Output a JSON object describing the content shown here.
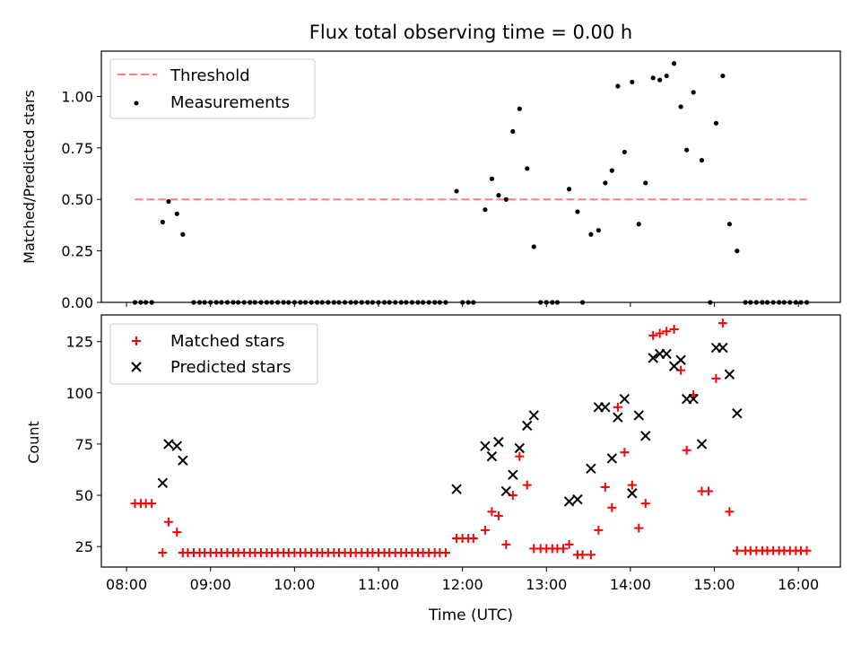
{
  "figure": {
    "title": "Flux total observing time = 0.00 h"
  },
  "chart_data": [
    {
      "type": "scatter",
      "title": "Flux total observing time = 0.00 h",
      "xlabel": "",
      "ylabel": "Matched/Predicted stars",
      "xlim": [
        7.7,
        16.5
      ],
      "ylim": [
        0.0,
        1.22
      ],
      "yticks": [
        "0.00",
        "0.25",
        "0.50",
        "0.75",
        "1.00"
      ],
      "legend_position": "top-left",
      "threshold": {
        "name": "Threshold",
        "value": 0.5,
        "x_range": [
          8.1,
          16.1
        ],
        "color": "#ff7f7f",
        "style": "dashed"
      },
      "series": [
        {
          "name": "Measurements",
          "color": "#000000",
          "marker": "dot",
          "points": [
            [
              8.1,
              0
            ],
            [
              8.17,
              0
            ],
            [
              8.23,
              0
            ],
            [
              8.3,
              0
            ],
            [
              8.43,
              0.39
            ],
            [
              8.5,
              0.49
            ],
            [
              8.6,
              0.43
            ],
            [
              8.67,
              0.33
            ],
            [
              8.8,
              0
            ],
            [
              8.87,
              0
            ],
            [
              8.93,
              0
            ],
            [
              9.0,
              0
            ],
            [
              9.07,
              0
            ],
            [
              9.13,
              0
            ],
            [
              9.2,
              0
            ],
            [
              9.27,
              0
            ],
            [
              9.33,
              0
            ],
            [
              9.4,
              0
            ],
            [
              9.47,
              0
            ],
            [
              9.53,
              0
            ],
            [
              9.6,
              0
            ],
            [
              9.67,
              0
            ],
            [
              9.73,
              0
            ],
            [
              9.8,
              0
            ],
            [
              9.87,
              0
            ],
            [
              9.93,
              0
            ],
            [
              10.0,
              0
            ],
            [
              10.07,
              0
            ],
            [
              10.13,
              0
            ],
            [
              10.2,
              0
            ],
            [
              10.27,
              0
            ],
            [
              10.33,
              0
            ],
            [
              10.4,
              0
            ],
            [
              10.47,
              0
            ],
            [
              10.53,
              0
            ],
            [
              10.6,
              0
            ],
            [
              10.67,
              0
            ],
            [
              10.73,
              0
            ],
            [
              10.8,
              0
            ],
            [
              10.87,
              0
            ],
            [
              10.93,
              0
            ],
            [
              11.0,
              0
            ],
            [
              11.07,
              0
            ],
            [
              11.13,
              0
            ],
            [
              11.2,
              0
            ],
            [
              11.27,
              0
            ],
            [
              11.33,
              0
            ],
            [
              11.4,
              0
            ],
            [
              11.47,
              0
            ],
            [
              11.53,
              0
            ],
            [
              11.6,
              0
            ],
            [
              11.67,
              0
            ],
            [
              11.73,
              0
            ],
            [
              11.8,
              0
            ],
            [
              11.93,
              0.54
            ],
            [
              12.0,
              0
            ],
            [
              12.07,
              0
            ],
            [
              12.13,
              0
            ],
            [
              12.27,
              0.45
            ],
            [
              12.35,
              0.6
            ],
            [
              12.43,
              0.52
            ],
            [
              12.52,
              0.5
            ],
            [
              12.6,
              0.83
            ],
            [
              12.68,
              0.94
            ],
            [
              12.77,
              0.65
            ],
            [
              12.85,
              0.27
            ],
            [
              12.93,
              0
            ],
            [
              13.0,
              0
            ],
            [
              13.07,
              0
            ],
            [
              13.13,
              0
            ],
            [
              13.27,
              0.55
            ],
            [
              13.37,
              0.44
            ],
            [
              13.43,
              0
            ],
            [
              13.53,
              0.33
            ],
            [
              13.62,
              0.35
            ],
            [
              13.7,
              0.58
            ],
            [
              13.78,
              0.64
            ],
            [
              13.85,
              1.05
            ],
            [
              13.93,
              0.73
            ],
            [
              14.02,
              1.07
            ],
            [
              14.1,
              0.38
            ],
            [
              14.18,
              0.58
            ],
            [
              14.27,
              1.09
            ],
            [
              14.35,
              1.08
            ],
            [
              14.43,
              1.1
            ],
            [
              14.52,
              1.16
            ],
            [
              14.6,
              0.95
            ],
            [
              14.67,
              0.74
            ],
            [
              14.75,
              1.02
            ],
            [
              14.85,
              0.69
            ],
            [
              14.95,
              0
            ],
            [
              15.02,
              0.87
            ],
            [
              15.1,
              1.1
            ],
            [
              15.18,
              0.38
            ],
            [
              15.27,
              0.25
            ],
            [
              15.37,
              0
            ],
            [
              15.43,
              0
            ],
            [
              15.5,
              0
            ],
            [
              15.57,
              0
            ],
            [
              15.63,
              0
            ],
            [
              15.7,
              0
            ],
            [
              15.77,
              0
            ],
            [
              15.83,
              0
            ],
            [
              15.9,
              0
            ],
            [
              15.97,
              0
            ],
            [
              16.03,
              0
            ],
            [
              16.1,
              0
            ]
          ]
        }
      ]
    },
    {
      "type": "scatter",
      "xlabel": "Time (UTC)",
      "ylabel": "Count",
      "xlim": [
        7.7,
        16.5
      ],
      "ylim": [
        15,
        138
      ],
      "xticks": [
        "08:00",
        "09:00",
        "10:00",
        "11:00",
        "12:00",
        "13:00",
        "14:00",
        "15:00",
        "16:00"
      ],
      "yticks": [
        "25",
        "50",
        "75",
        "100",
        "125"
      ],
      "legend_position": "top-left",
      "series": [
        {
          "name": "Matched stars",
          "color": "#ff0000",
          "marker": "plus",
          "points": [
            [
              8.1,
              46
            ],
            [
              8.17,
              46
            ],
            [
              8.23,
              46
            ],
            [
              8.3,
              46
            ],
            [
              8.43,
              22
            ],
            [
              8.5,
              37
            ],
            [
              8.6,
              32
            ],
            [
              8.67,
              22
            ],
            [
              8.73,
              22
            ],
            [
              8.8,
              22
            ],
            [
              8.87,
              22
            ],
            [
              8.93,
              22
            ],
            [
              9.0,
              22
            ],
            [
              9.07,
              22
            ],
            [
              9.13,
              22
            ],
            [
              9.2,
              22
            ],
            [
              9.27,
              22
            ],
            [
              9.33,
              22
            ],
            [
              9.4,
              22
            ],
            [
              9.47,
              22
            ],
            [
              9.53,
              22
            ],
            [
              9.6,
              22
            ],
            [
              9.67,
              22
            ],
            [
              9.73,
              22
            ],
            [
              9.8,
              22
            ],
            [
              9.87,
              22
            ],
            [
              9.93,
              22
            ],
            [
              10.0,
              22
            ],
            [
              10.07,
              22
            ],
            [
              10.13,
              22
            ],
            [
              10.2,
              22
            ],
            [
              10.27,
              22
            ],
            [
              10.33,
              22
            ],
            [
              10.4,
              22
            ],
            [
              10.47,
              22
            ],
            [
              10.53,
              22
            ],
            [
              10.6,
              22
            ],
            [
              10.67,
              22
            ],
            [
              10.73,
              22
            ],
            [
              10.8,
              22
            ],
            [
              10.87,
              22
            ],
            [
              10.93,
              22
            ],
            [
              11.0,
              22
            ],
            [
              11.07,
              22
            ],
            [
              11.13,
              22
            ],
            [
              11.2,
              22
            ],
            [
              11.27,
              22
            ],
            [
              11.33,
              22
            ],
            [
              11.4,
              22
            ],
            [
              11.47,
              22
            ],
            [
              11.53,
              22
            ],
            [
              11.6,
              22
            ],
            [
              11.67,
              22
            ],
            [
              11.73,
              22
            ],
            [
              11.8,
              22
            ],
            [
              11.93,
              29
            ],
            [
              12.0,
              29
            ],
            [
              12.07,
              29
            ],
            [
              12.13,
              29
            ],
            [
              12.27,
              33
            ],
            [
              12.35,
              42
            ],
            [
              12.43,
              40
            ],
            [
              12.52,
              26
            ],
            [
              12.6,
              50
            ],
            [
              12.68,
              69
            ],
            [
              12.77,
              55
            ],
            [
              12.85,
              24
            ],
            [
              12.93,
              24
            ],
            [
              13.0,
              24
            ],
            [
              13.07,
              24
            ],
            [
              13.13,
              24
            ],
            [
              13.2,
              24
            ],
            [
              13.27,
              26
            ],
            [
              13.37,
              21
            ],
            [
              13.43,
              21
            ],
            [
              13.53,
              21
            ],
            [
              13.62,
              33
            ],
            [
              13.7,
              54
            ],
            [
              13.78,
              44
            ],
            [
              13.85,
              93
            ],
            [
              13.93,
              71
            ],
            [
              14.02,
              55
            ],
            [
              14.1,
              34
            ],
            [
              14.18,
              46
            ],
            [
              14.27,
              128
            ],
            [
              14.35,
              129
            ],
            [
              14.43,
              130
            ],
            [
              14.52,
              131
            ],
            [
              14.6,
              111
            ],
            [
              14.67,
              72
            ],
            [
              14.75,
              99
            ],
            [
              14.85,
              52
            ],
            [
              14.93,
              52
            ],
            [
              15.02,
              107
            ],
            [
              15.1,
              134
            ],
            [
              15.18,
              42
            ],
            [
              15.27,
              23
            ],
            [
              15.37,
              23
            ],
            [
              15.43,
              23
            ],
            [
              15.5,
              23
            ],
            [
              15.57,
              23
            ],
            [
              15.63,
              23
            ],
            [
              15.7,
              23
            ],
            [
              15.77,
              23
            ],
            [
              15.83,
              23
            ],
            [
              15.9,
              23
            ],
            [
              15.97,
              23
            ],
            [
              16.03,
              23
            ],
            [
              16.1,
              23
            ]
          ]
        },
        {
          "name": "Predicted stars",
          "color": "#000000",
          "marker": "x",
          "points": [
            [
              8.43,
              56
            ],
            [
              8.5,
              75
            ],
            [
              8.6,
              74
            ],
            [
              8.67,
              67
            ],
            [
              11.93,
              53
            ],
            [
              12.27,
              74
            ],
            [
              12.35,
              69
            ],
            [
              12.43,
              76
            ],
            [
              12.52,
              52
            ],
            [
              12.6,
              60
            ],
            [
              12.68,
              73
            ],
            [
              12.77,
              84
            ],
            [
              12.85,
              89
            ],
            [
              13.27,
              47
            ],
            [
              13.37,
              48
            ],
            [
              13.53,
              63
            ],
            [
              13.62,
              93
            ],
            [
              13.7,
              93
            ],
            [
              13.78,
              68
            ],
            [
              13.85,
              88
            ],
            [
              13.93,
              97
            ],
            [
              14.02,
              51
            ],
            [
              14.1,
              89
            ],
            [
              14.18,
              79
            ],
            [
              14.27,
              117
            ],
            [
              14.35,
              119
            ],
            [
              14.43,
              119
            ],
            [
              14.52,
              113
            ],
            [
              14.6,
              116
            ],
            [
              14.67,
              97
            ],
            [
              14.75,
              97
            ],
            [
              14.85,
              75
            ],
            [
              15.02,
              122
            ],
            [
              15.1,
              122
            ],
            [
              15.18,
              109
            ],
            [
              15.27,
              90
            ]
          ]
        }
      ]
    }
  ]
}
